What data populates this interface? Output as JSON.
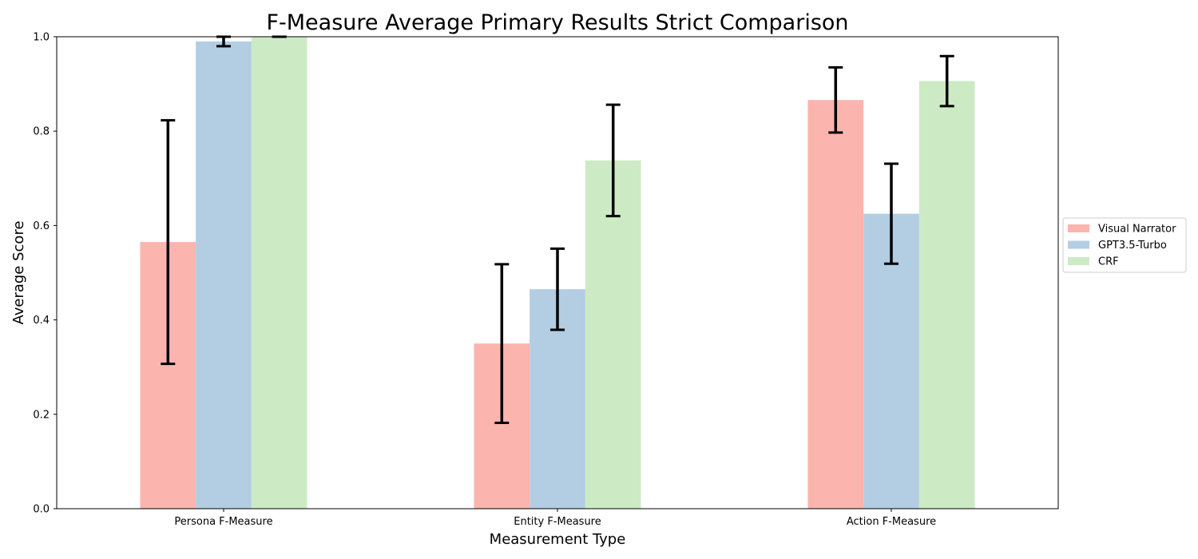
{
  "chart_data": {
    "type": "bar",
    "title": "F-Measure Average Primary Results Strict Comparison",
    "xlabel": "Measurement Type",
    "ylabel": "Average Score",
    "ylim": [
      0,
      1.0
    ],
    "yticks": [
      "0.0",
      "0.2",
      "0.4",
      "0.6",
      "0.8",
      "1.0"
    ],
    "categories": [
      "Persona F-Measure",
      "Entity F-Measure",
      "Action F-Measure"
    ],
    "series": [
      {
        "name": "Visual Narrator",
        "color": "#fbb4ae",
        "values": [
          0.565,
          0.35,
          0.866
        ],
        "errors": [
          0.258,
          0.168,
          0.069
        ]
      },
      {
        "name": "GPT3.5-Turbo",
        "color": "#b3cde3",
        "values": [
          0.99,
          0.465,
          0.625
        ],
        "errors": [
          0.01,
          0.086,
          0.106
        ]
      },
      {
        "name": "CRF",
        "color": "#ccebc5",
        "values": [
          1.0,
          0.738,
          0.906
        ],
        "errors": [
          0.0,
          0.118,
          0.053
        ]
      }
    ],
    "grid": false,
    "legend_position": "right"
  }
}
